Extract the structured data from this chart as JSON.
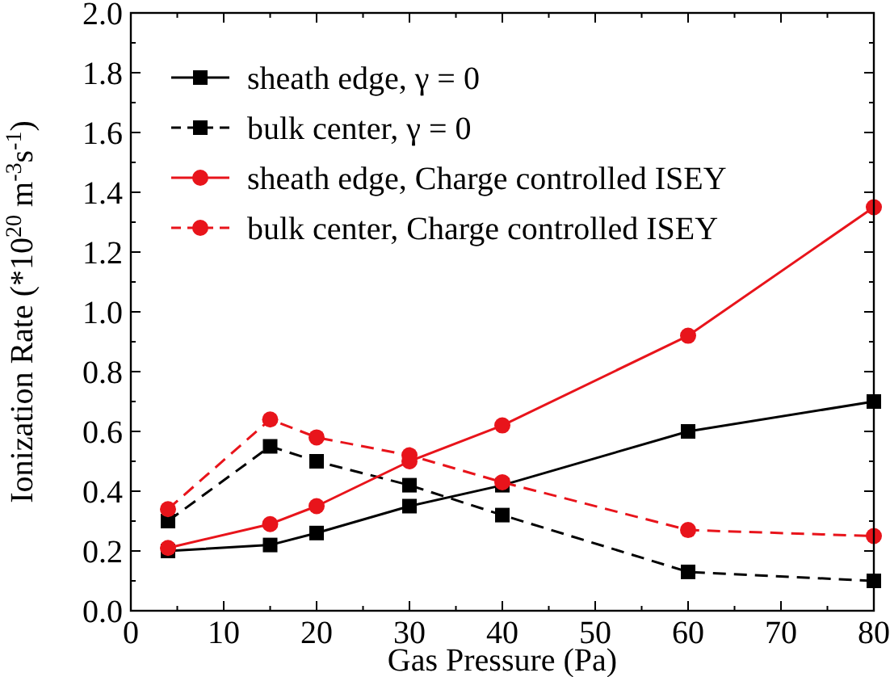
{
  "chart_data": {
    "type": "line",
    "xlabel": "Gas Pressure (Pa)",
    "ylabel": "Ionization Rate (*10$^{20}$ m$^{-3}$s$^{-1}$)",
    "x": [
      4,
      15,
      20,
      30,
      40,
      60,
      80
    ],
    "xlim": [
      0,
      80
    ],
    "xticks": [
      0,
      10,
      20,
      30,
      40,
      50,
      60,
      70,
      80
    ],
    "ylim": [
      0,
      2
    ],
    "yticks": [
      {
        "value": 0,
        "label": "0.0"
      },
      {
        "value": 0.2,
        "label": "0.2"
      },
      {
        "value": 0.4,
        "label": "0.4"
      },
      {
        "value": 0.6,
        "label": "0.6"
      },
      {
        "value": 0.8,
        "label": "0.8"
      },
      {
        "value": 1,
        "label": "1.0"
      },
      {
        "value": 1.2,
        "label": "1.2"
      },
      {
        "value": 1.4,
        "label": "1.4"
      },
      {
        "value": 1.6,
        "label": "1.6"
      },
      {
        "value": 1.8,
        "label": "1.8"
      },
      {
        "value": 2,
        "label": "2.0"
      }
    ],
    "grid": false,
    "legend": "top left",
    "series": [
      {
        "name": "sheath edge, γ = 0",
        "color": "#000000",
        "marker": "square",
        "line_style": "solid",
        "values": [
          0.2,
          0.22,
          0.26,
          0.35,
          0.42,
          0.6,
          0.7
        ]
      },
      {
        "name": "bulk center, γ = 0",
        "color": "#000000",
        "marker": "square",
        "line_style": "dashed",
        "values": [
          0.3,
          0.55,
          0.5,
          0.42,
          0.32,
          0.13,
          0.1
        ]
      },
      {
        "name": "sheath edge, Charge controlled ISEY",
        "color": "#e8141b",
        "marker": "circle",
        "line_style": "solid",
        "values": [
          0.21,
          0.29,
          0.35,
          0.5,
          0.62,
          0.92,
          1.35
        ]
      },
      {
        "name": "bulk center, Charge controlled ISEY",
        "color": "#e8141b",
        "marker": "circle",
        "line_style": "dashed",
        "values": [
          0.34,
          0.64,
          0.58,
          0.52,
          0.43,
          0.27,
          0.25
        ]
      }
    ]
  }
}
